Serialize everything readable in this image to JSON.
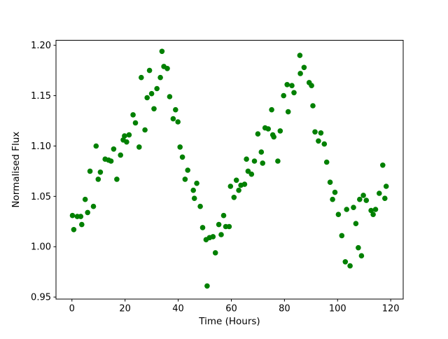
{
  "figure": {
    "background": "#ffffff",
    "spine_color": "#000000",
    "text_color": "#000000"
  },
  "chart_data": {
    "type": "scatter",
    "title": "",
    "xlabel": "Time (Hours)",
    "ylabel": "Normalised Flux",
    "legend": null,
    "grid": false,
    "marker_color": "#008000",
    "marker_radius_px": 3.8,
    "xlim": [
      -6,
      124.7
    ],
    "ylim": [
      0.948,
      1.205
    ],
    "xticks": [
      0,
      20,
      40,
      60,
      80,
      100,
      120
    ],
    "xtick_labels": [
      "0",
      "20",
      "40",
      "60",
      "80",
      "100",
      "120"
    ],
    "yticks": [
      0.95,
      1.0,
      1.05,
      1.1,
      1.15,
      1.2
    ],
    "ytick_labels": [
      "0.95",
      "1.00",
      "1.05",
      "1.10",
      "1.15",
      "1.20"
    ],
    "points": [
      [
        0.2,
        1.031
      ],
      [
        0.7,
        1.017
      ],
      [
        2.0,
        1.03
      ],
      [
        3.3,
        1.03
      ],
      [
        3.7,
        1.022
      ],
      [
        5.0,
        1.047
      ],
      [
        5.9,
        1.034
      ],
      [
        6.8,
        1.075
      ],
      [
        8.1,
        1.04
      ],
      [
        9.1,
        1.1
      ],
      [
        9.9,
        1.067
      ],
      [
        10.7,
        1.074
      ],
      [
        12.5,
        1.087
      ],
      [
        13.8,
        1.086
      ],
      [
        14.7,
        1.085
      ],
      [
        15.7,
        1.097
      ],
      [
        16.9,
        1.067
      ],
      [
        18.3,
        1.091
      ],
      [
        19.3,
        1.106
      ],
      [
        19.8,
        1.11
      ],
      [
        20.6,
        1.104
      ],
      [
        21.5,
        1.111
      ],
      [
        23.0,
        1.131
      ],
      [
        23.9,
        1.123
      ],
      [
        25.3,
        1.099
      ],
      [
        26.1,
        1.168
      ],
      [
        27.5,
        1.116
      ],
      [
        28.3,
        1.148
      ],
      [
        29.2,
        1.175
      ],
      [
        30.0,
        1.152
      ],
      [
        30.9,
        1.137
      ],
      [
        32.0,
        1.157
      ],
      [
        33.3,
        1.168
      ],
      [
        33.9,
        1.194
      ],
      [
        34.6,
        1.179
      ],
      [
        35.9,
        1.177
      ],
      [
        36.8,
        1.149
      ],
      [
        38.1,
        1.127
      ],
      [
        39.0,
        1.136
      ],
      [
        39.9,
        1.124
      ],
      [
        40.7,
        1.099
      ],
      [
        41.6,
        1.089
      ],
      [
        42.6,
        1.067
      ],
      [
        43.6,
        1.076
      ],
      [
        45.7,
        1.056
      ],
      [
        46.1,
        1.048
      ],
      [
        47.0,
        1.063
      ],
      [
        48.3,
        1.04
      ],
      [
        49.2,
        1.019
      ],
      [
        50.5,
        1.007
      ],
      [
        50.9,
        0.961
      ],
      [
        51.8,
        1.009
      ],
      [
        53.1,
        1.01
      ],
      [
        54.0,
        0.994
      ],
      [
        55.3,
        1.022
      ],
      [
        56.2,
        1.012
      ],
      [
        57.1,
        1.031
      ],
      [
        57.9,
        1.02
      ],
      [
        59.2,
        1.02
      ],
      [
        59.7,
        1.06
      ],
      [
        61.0,
        1.049
      ],
      [
        61.9,
        1.066
      ],
      [
        62.8,
        1.056
      ],
      [
        63.6,
        1.061
      ],
      [
        65.0,
        1.062
      ],
      [
        65.7,
        1.087
      ],
      [
        66.3,
        1.075
      ],
      [
        67.6,
        1.072
      ],
      [
        68.7,
        1.085
      ],
      [
        70.0,
        1.112
      ],
      [
        71.3,
        1.094
      ],
      [
        71.8,
        1.083
      ],
      [
        72.7,
        1.118
      ],
      [
        73.9,
        1.117
      ],
      [
        75.2,
        1.136
      ],
      [
        75.6,
        1.111
      ],
      [
        76.0,
        1.109
      ],
      [
        77.5,
        1.085
      ],
      [
        78.4,
        1.115
      ],
      [
        79.7,
        1.15
      ],
      [
        81.0,
        1.161
      ],
      [
        81.4,
        1.134
      ],
      [
        82.8,
        1.16
      ],
      [
        83.6,
        1.153
      ],
      [
        85.8,
        1.19
      ],
      [
        86.0,
        1.172
      ],
      [
        87.4,
        1.178
      ],
      [
        89.3,
        1.163
      ],
      [
        90.2,
        1.16
      ],
      [
        90.7,
        1.14
      ],
      [
        91.5,
        1.114
      ],
      [
        92.8,
        1.105
      ],
      [
        93.7,
        1.113
      ],
      [
        95.0,
        1.102
      ],
      [
        95.9,
        1.084
      ],
      [
        97.2,
        1.064
      ],
      [
        98.1,
        1.047
      ],
      [
        99.0,
        1.054
      ],
      [
        100.3,
        1.032
      ],
      [
        101.6,
        1.011
      ],
      [
        102.9,
        0.985
      ],
      [
        103.4,
        1.037
      ],
      [
        104.7,
        0.981
      ],
      [
        106.0,
        1.039
      ],
      [
        106.9,
        1.023
      ],
      [
        107.8,
        0.999
      ],
      [
        108.3,
        1.047
      ],
      [
        109.0,
        0.991
      ],
      [
        109.7,
        1.051
      ],
      [
        110.8,
        1.046
      ],
      [
        112.6,
        1.036
      ],
      [
        113.4,
        1.032
      ],
      [
        114.3,
        1.037
      ],
      [
        115.7,
        1.053
      ],
      [
        117.0,
        1.081
      ],
      [
        117.8,
        1.048
      ],
      [
        118.3,
        1.06
      ]
    ]
  }
}
